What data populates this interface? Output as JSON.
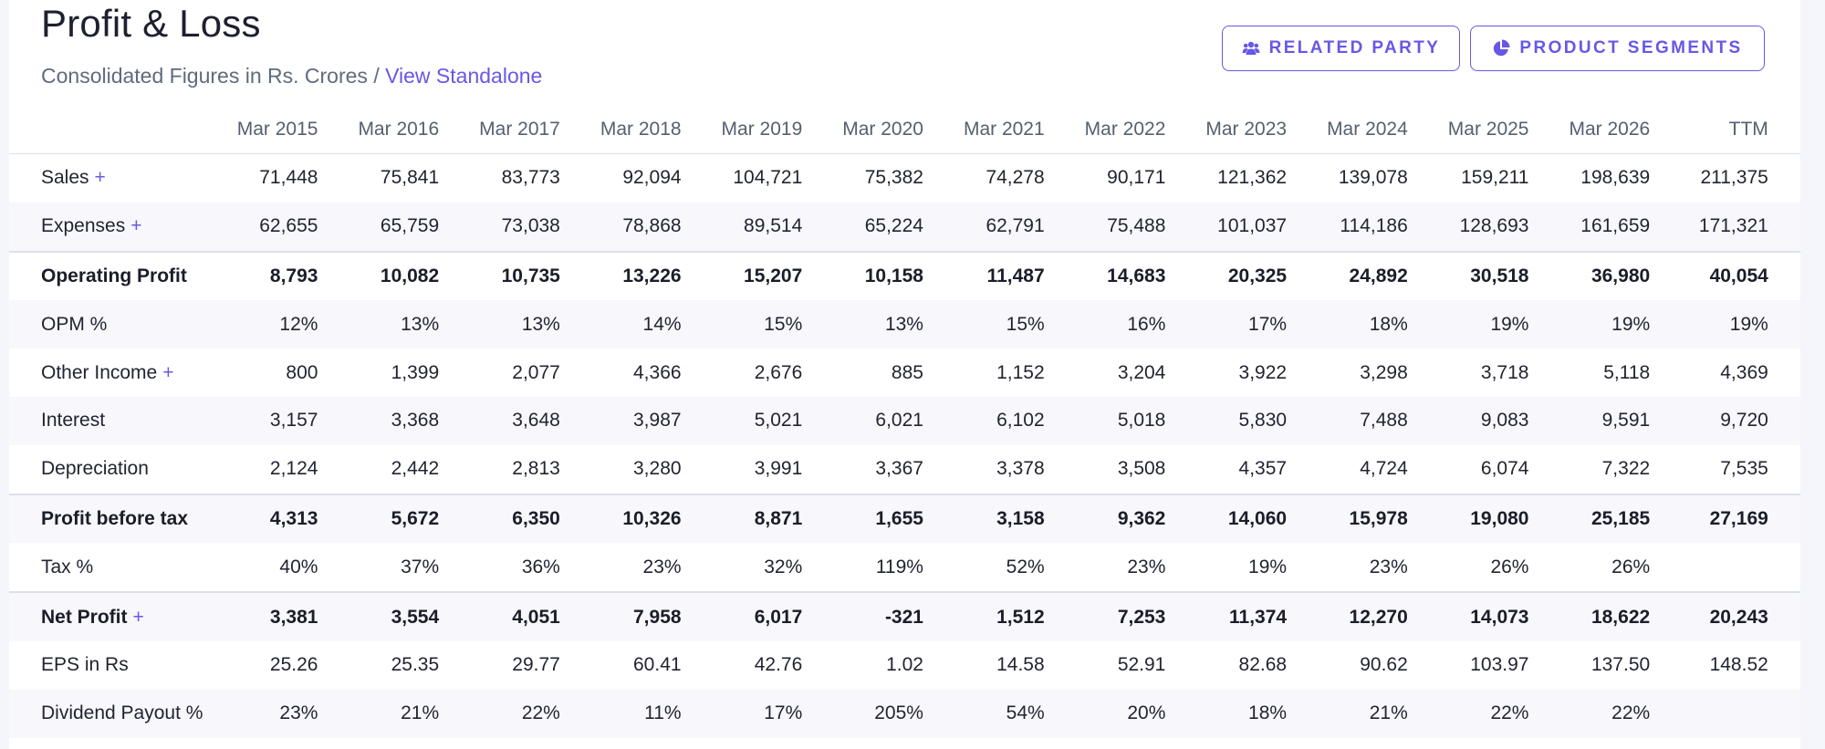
{
  "header": {
    "title": "Profit & Loss",
    "subtitle_prefix": "Consolidated Figures in Rs. Crores / ",
    "subtitle_link": "View Standalone"
  },
  "buttons": {
    "related_party": "RELATED PARTY",
    "product_segments": "PRODUCT SEGMENTS",
    "related_party_icon": "users-icon",
    "product_segments_icon": "pie-chart-icon"
  },
  "colors": {
    "accent": "#6758e6",
    "text": "#202231",
    "muted": "#5f6b7c"
  },
  "table": {
    "columns": [
      "Mar 2015",
      "Mar 2016",
      "Mar 2017",
      "Mar 2018",
      "Mar 2019",
      "Mar 2020",
      "Mar 2021",
      "Mar 2022",
      "Mar 2023",
      "Mar 2024",
      "Mar 2025",
      "Mar 2026",
      "TTM"
    ],
    "rows": [
      {
        "label": "Sales",
        "expandable": true,
        "bold": false,
        "values": [
          "71,448",
          "75,841",
          "83,773",
          "92,094",
          "104,721",
          "75,382",
          "74,278",
          "90,171",
          "121,362",
          "139,078",
          "159,211",
          "198,639",
          "211,375"
        ]
      },
      {
        "label": "Expenses",
        "expandable": true,
        "bold": false,
        "values": [
          "62,655",
          "65,759",
          "73,038",
          "78,868",
          "89,514",
          "65,224",
          "62,791",
          "75,488",
          "101,037",
          "114,186",
          "128,693",
          "161,659",
          "171,321"
        ]
      },
      {
        "label": "Operating Profit",
        "expandable": false,
        "bold": true,
        "values": [
          "8,793",
          "10,082",
          "10,735",
          "13,226",
          "15,207",
          "10,158",
          "11,487",
          "14,683",
          "20,325",
          "24,892",
          "30,518",
          "36,980",
          "40,054"
        ]
      },
      {
        "label": "OPM %",
        "expandable": false,
        "bold": false,
        "values": [
          "12%",
          "13%",
          "13%",
          "14%",
          "15%",
          "13%",
          "15%",
          "16%",
          "17%",
          "18%",
          "19%",
          "19%",
          "19%"
        ]
      },
      {
        "label": "Other Income",
        "expandable": true,
        "bold": false,
        "values": [
          "800",
          "1,399",
          "2,077",
          "4,366",
          "2,676",
          "885",
          "1,152",
          "3,204",
          "3,922",
          "3,298",
          "3,718",
          "5,118",
          "4,369"
        ]
      },
      {
        "label": "Interest",
        "expandable": false,
        "bold": false,
        "values": [
          "3,157",
          "3,368",
          "3,648",
          "3,987",
          "5,021",
          "6,021",
          "6,102",
          "5,018",
          "5,830",
          "7,488",
          "9,083",
          "9,591",
          "9,720"
        ]
      },
      {
        "label": "Depreciation",
        "expandable": false,
        "bold": false,
        "values": [
          "2,124",
          "2,442",
          "2,813",
          "3,280",
          "3,991",
          "3,367",
          "3,378",
          "3,508",
          "4,357",
          "4,724",
          "6,074",
          "7,322",
          "7,535"
        ]
      },
      {
        "label": "Profit before tax",
        "expandable": false,
        "bold": true,
        "values": [
          "4,313",
          "5,672",
          "6,350",
          "10,326",
          "8,871",
          "1,655",
          "3,158",
          "9,362",
          "14,060",
          "15,978",
          "19,080",
          "25,185",
          "27,169"
        ]
      },
      {
        "label": "Tax %",
        "expandable": false,
        "bold": false,
        "values": [
          "40%",
          "37%",
          "36%",
          "23%",
          "32%",
          "119%",
          "52%",
          "23%",
          "19%",
          "23%",
          "26%",
          "26%",
          ""
        ]
      },
      {
        "label": "Net Profit",
        "expandable": true,
        "bold": true,
        "values": [
          "3,381",
          "3,554",
          "4,051",
          "7,958",
          "6,017",
          "-321",
          "1,512",
          "7,253",
          "11,374",
          "12,270",
          "14,073",
          "18,622",
          "20,243"
        ]
      },
      {
        "label": "EPS in Rs",
        "expandable": false,
        "bold": false,
        "values": [
          "25.26",
          "25.35",
          "29.77",
          "60.41",
          "42.76",
          "1.02",
          "14.58",
          "52.91",
          "82.68",
          "90.62",
          "103.97",
          "137.50",
          "148.52"
        ]
      },
      {
        "label": "Dividend Payout %",
        "expandable": false,
        "bold": false,
        "values": [
          "23%",
          "21%",
          "22%",
          "11%",
          "17%",
          "205%",
          "54%",
          "20%",
          "18%",
          "21%",
          "22%",
          "22%",
          ""
        ]
      }
    ]
  }
}
